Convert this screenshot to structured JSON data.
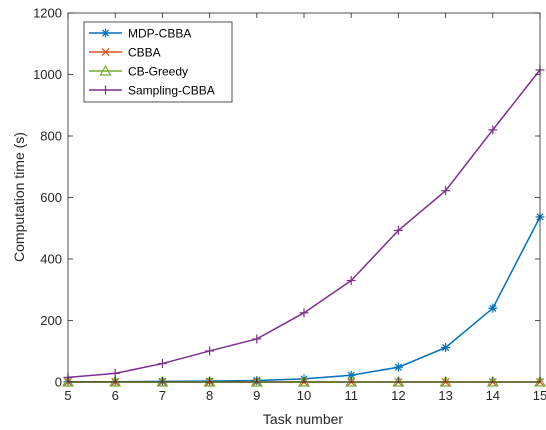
{
  "chart_data": {
    "type": "line",
    "xlabel": "Task number",
    "ylabel": "Computation time (s)",
    "xlim": [
      5,
      15
    ],
    "ylim": [
      0,
      1200
    ],
    "x": [
      5,
      6,
      7,
      8,
      9,
      10,
      11,
      12,
      13,
      14,
      15
    ],
    "xticks": [
      "5",
      "6",
      "7",
      "8",
      "9",
      "10",
      "11",
      "12",
      "13",
      "14",
      "15"
    ],
    "yticks": [
      "0",
      "200",
      "400",
      "600",
      "800",
      "1000",
      "1200"
    ],
    "legend_position": "top-left",
    "grid": false,
    "series": [
      {
        "name": "MDP-CBBA",
        "color": "#0072BD",
        "marker": "asterisk",
        "values": [
          1,
          1,
          2,
          3,
          5,
          10,
          22,
          48,
          112,
          240,
          537
        ]
      },
      {
        "name": "CBBA",
        "color": "#D95319",
        "marker": "x",
        "values": [
          0,
          0,
          0,
          0,
          0,
          0,
          0,
          0,
          0,
          0,
          0
        ]
      },
      {
        "name": "CB-Greedy",
        "color": "#77AC30",
        "marker": "triangle",
        "values": [
          0,
          0,
          0,
          0,
          0,
          0,
          0,
          0,
          0,
          0,
          0
        ]
      },
      {
        "name": "Sampling-CBBA",
        "color": "#7E2F8E",
        "marker": "plus",
        "values": [
          15,
          28,
          60,
          101,
          140,
          225,
          330,
          493,
          622,
          820,
          1015
        ]
      }
    ]
  }
}
